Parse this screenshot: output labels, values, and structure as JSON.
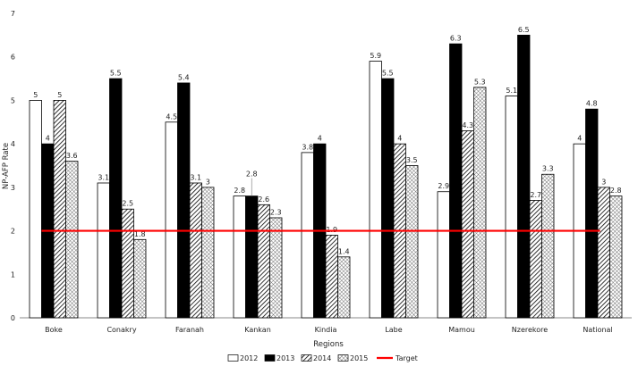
{
  "chart_data": {
    "type": "bar",
    "title": "",
    "xlabel": "Regions",
    "ylabel": "NP-AFP Rate",
    "ylim": [
      0,
      7
    ],
    "yticks": [
      0,
      1,
      2,
      3,
      4,
      5,
      6,
      7
    ],
    "categories": [
      "Boke",
      "Conakry",
      "Faranah",
      "Kankan",
      "Kindia",
      "Labe",
      "Mamou",
      "Nzerekore",
      "National"
    ],
    "series": [
      {
        "name": "2012",
        "pattern": "white",
        "values": [
          5,
          3.1,
          4.5,
          2.8,
          3.8,
          5.9,
          2.9,
          5.1,
          4
        ]
      },
      {
        "name": "2013",
        "pattern": "black",
        "values": [
          4,
          5.5,
          5.4,
          2.8,
          4,
          5.5,
          6.3,
          6.5,
          4.8
        ]
      },
      {
        "name": "2014",
        "pattern": "diagonal",
        "values": [
          5,
          2.5,
          3.1,
          2.6,
          1.9,
          4,
          4.3,
          2.7,
          3
        ]
      },
      {
        "name": "2015",
        "pattern": "crosshatch",
        "values": [
          3.6,
          1.8,
          3,
          2.3,
          1.4,
          3.5,
          5.3,
          3.3,
          2.8
        ]
      }
    ],
    "target": {
      "name": "Target",
      "value": 2,
      "color": "#ff0000"
    },
    "legend_position": "bottom-center",
    "grid": false
  }
}
